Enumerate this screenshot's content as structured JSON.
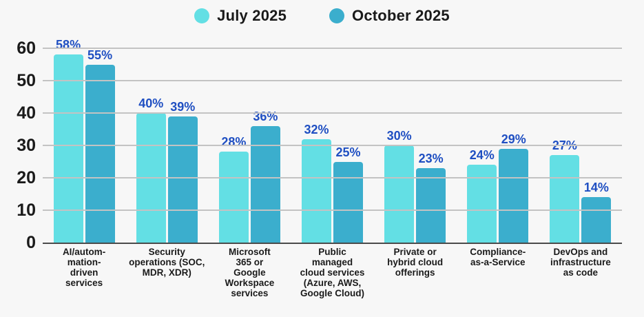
{
  "colors": {
    "background": "#f7f7f7",
    "grid": "#c3c3c3",
    "axis_line": "#4a4a4a",
    "value_label": "#1f4fc2",
    "text": "#1a1a1a"
  },
  "legend": {
    "position": "top-center"
  },
  "chart_data": {
    "type": "bar",
    "categories": [
      "AI/autom-\nmation-\ndriven\nservices",
      "Security\noperations (SOC,\nMDR, XDR)",
      "Microsoft\n365 or\nGoogle\nWorkspace\nservices",
      "Public\nmanaged\ncloud services\n(Azure, AWS,\nGoogle Cloud)",
      "Private or\nhybrid cloud\nofferings",
      "Compliance-\nas-a-Service",
      "DevOps and\ninfrastructure\nas code"
    ],
    "series": [
      {
        "name": "July 2025",
        "color": "#63dfe4",
        "values": [
          58,
          40,
          28,
          32,
          30,
          24,
          27
        ]
      },
      {
        "name": "October 2025",
        "color": "#3baecd",
        "values": [
          55,
          39,
          36,
          25,
          23,
          29,
          14
        ]
      }
    ],
    "value_labels": [
      [
        "58%",
        "40%",
        "28%",
        "32%",
        "30%",
        "24%",
        "27%"
      ],
      [
        "55%",
        "39%",
        "36%",
        "25%",
        "23%",
        "29%",
        "14%"
      ]
    ],
    "value_suffix": "%",
    "xlabel": "",
    "ylabel": "",
    "ylim": [
      0,
      60
    ],
    "yticks": [
      0,
      10,
      20,
      30,
      40,
      50,
      60
    ],
    "grid": true,
    "legend_position": "top"
  }
}
